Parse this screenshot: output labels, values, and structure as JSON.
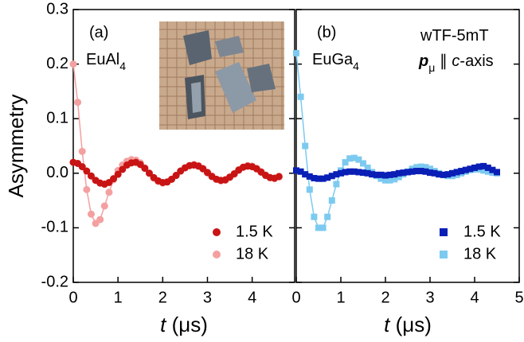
{
  "chart_data": [
    {
      "type": "scatter",
      "y_label": "Asymmetry",
      "x_label": [
        {
          "text": "t",
          "italic": true
        },
        {
          "text": " (μs)"
        }
      ],
      "annotations": [
        [
          {
            "text": "(a)"
          }
        ],
        [
          {
            "text": "EuAl"
          },
          {
            "text": "4",
            "sub": true
          }
        ]
      ],
      "inset_photo": true,
      "xlim": [
        0,
        4.95
      ],
      "xticks": [
        0,
        1,
        2,
        3,
        4
      ],
      "ylim": [
        -0.2,
        0.3
      ],
      "yticks": [
        -0.2,
        -0.1,
        {
          "value": 0,
          "label": "0.0"
        },
        0.1,
        0.2,
        0.3
      ],
      "marker": "circle",
      "fit_line": true,
      "legend": "lower right",
      "x": [
        0,
        0.1,
        0.2,
        0.3,
        0.4,
        0.5,
        0.6,
        0.7,
        0.8,
        0.9,
        1,
        1.1,
        1.2,
        1.3,
        1.4,
        1.5,
        1.6,
        1.7,
        1.8,
        1.9,
        2,
        2.1,
        2.2,
        2.3,
        2.4,
        2.5,
        2.6,
        2.7,
        2.8,
        2.9,
        3,
        3.1,
        3.2,
        3.3,
        3.4,
        3.5,
        3.6,
        3.7,
        3.8,
        3.9,
        4,
        4.1,
        4.2,
        4.3,
        4.4,
        4.5,
        4.6
      ],
      "series": [
        {
          "name": "1.5 K",
          "color": "#c81414",
          "values": [
            0.02,
            0.018,
            0.012,
            0.004,
            -0.005,
            -0.013,
            -0.018,
            -0.02,
            -0.017,
            -0.01,
            -0.002,
            0.007,
            0.015,
            0.019,
            0.02,
            0.016,
            0.009,
            0,
            -0.008,
            -0.014,
            -0.017,
            -0.016,
            -0.011,
            -0.004,
            0.004,
            0.01,
            0.014,
            0.015,
            0.013,
            0.008,
            0.001,
            -0.006,
            -0.011,
            -0.013,
            -0.012,
            -0.007,
            -0.001,
            0.006,
            0.011,
            0.013,
            0.012,
            0.008,
            0.002,
            -0.004,
            -0.008,
            -0.009,
            -0.006
          ]
        },
        {
          "name": "18 K",
          "color": "#f4a0a0",
          "values": [
            0.2,
            0.13,
            0.04,
            -0.03,
            -0.075,
            -0.092,
            -0.085,
            -0.06,
            -0.035,
            -0.012,
            0.005,
            0.015,
            0.022,
            0.025,
            0.024,
            0.019,
            0.01,
            0,
            -0.009,
            -0.015,
            -0.018,
            -0.016,
            -0.011,
            -0.004,
            0.004,
            0.01,
            0.014,
            0.016,
            0.014,
            0.009,
            0.002,
            -0.005,
            -0.011,
            -0.014,
            -0.013,
            -0.008,
            -0.002,
            0.005,
            0.011,
            0.014,
            0.013,
            0.009,
            0.003,
            -0.003,
            -0.008,
            -0.01,
            -0.007
          ]
        }
      ]
    },
    {
      "type": "scatter",
      "x_label": [
        {
          "text": "t",
          "italic": true
        },
        {
          "text": " (μs)"
        }
      ],
      "annotations": [
        [
          {
            "text": "(b)"
          }
        ],
        [
          {
            "text": "EuGa"
          },
          {
            "text": "4",
            "sub": true
          }
        ],
        [
          {
            "text": "wTF-5mT"
          }
        ],
        [
          {
            "text": "p",
            "italic": true,
            "bold": true
          },
          {
            "text": "μ",
            "sub": true
          },
          {
            "text": " ∥ "
          },
          {
            "text": "c",
            "italic": true
          },
          {
            "text": "-axis"
          }
        ]
      ],
      "xlim": [
        0,
        5
      ],
      "xticks": [
        0,
        1,
        2,
        3,
        4,
        5
      ],
      "ylim": [
        -0.2,
        0.3
      ],
      "marker": "square",
      "fit_line": true,
      "legend": "lower right",
      "x": [
        0,
        0.1,
        0.2,
        0.3,
        0.4,
        0.5,
        0.6,
        0.7,
        0.8,
        0.9,
        1,
        1.1,
        1.2,
        1.3,
        1.4,
        1.5,
        1.6,
        1.7,
        1.8,
        1.9,
        2,
        2.1,
        2.2,
        2.3,
        2.4,
        2.5,
        2.6,
        2.7,
        2.8,
        2.9,
        3,
        3.1,
        3.2,
        3.3,
        3.4,
        3.5,
        3.6,
        3.7,
        3.8,
        3.9,
        4,
        4.1,
        4.2,
        4.3,
        4.4,
        4.5
      ],
      "series": [
        {
          "name": "1.5 K",
          "color": "#0a1fb5",
          "values": [
            0.005,
            0.003,
            -0.002,
            -0.006,
            -0.009,
            -0.01,
            -0.01,
            -0.008,
            -0.005,
            -0.002,
            0,
            0.002,
            0.003,
            0.003,
            0.002,
            0.001,
            0,
            -0.002,
            -0.003,
            -0.003,
            -0.004,
            -0.003,
            -0.002,
            0,
            0.001,
            0.002,
            0.003,
            0.004,
            0.004,
            0.003,
            0.001,
            0,
            -0.002,
            -0.003,
            -0.002,
            0,
            0.002,
            0.004,
            0.006,
            0.008,
            0.01,
            0.012,
            0.013,
            0.01,
            0.006,
            0.002
          ]
        },
        {
          "name": "18 K",
          "color": "#7ccaf0",
          "values": [
            0.22,
            0.14,
            0.05,
            -0.03,
            -0.08,
            -0.1,
            -0.1,
            -0.08,
            -0.05,
            -0.02,
            0.005,
            0.02,
            0.027,
            0.028,
            0.025,
            0.018,
            0.01,
            0.002,
            -0.005,
            -0.01,
            -0.013,
            -0.013,
            -0.011,
            -0.007,
            -0.002,
            0.003,
            0.008,
            0.011,
            0.012,
            0.011,
            0.008,
            0.004,
            0,
            -0.003,
            -0.005,
            -0.005,
            -0.003,
            0,
            0.003,
            0.006,
            0.007,
            0.007,
            0.005,
            0.003,
            0.001,
            0
          ]
        }
      ]
    }
  ]
}
